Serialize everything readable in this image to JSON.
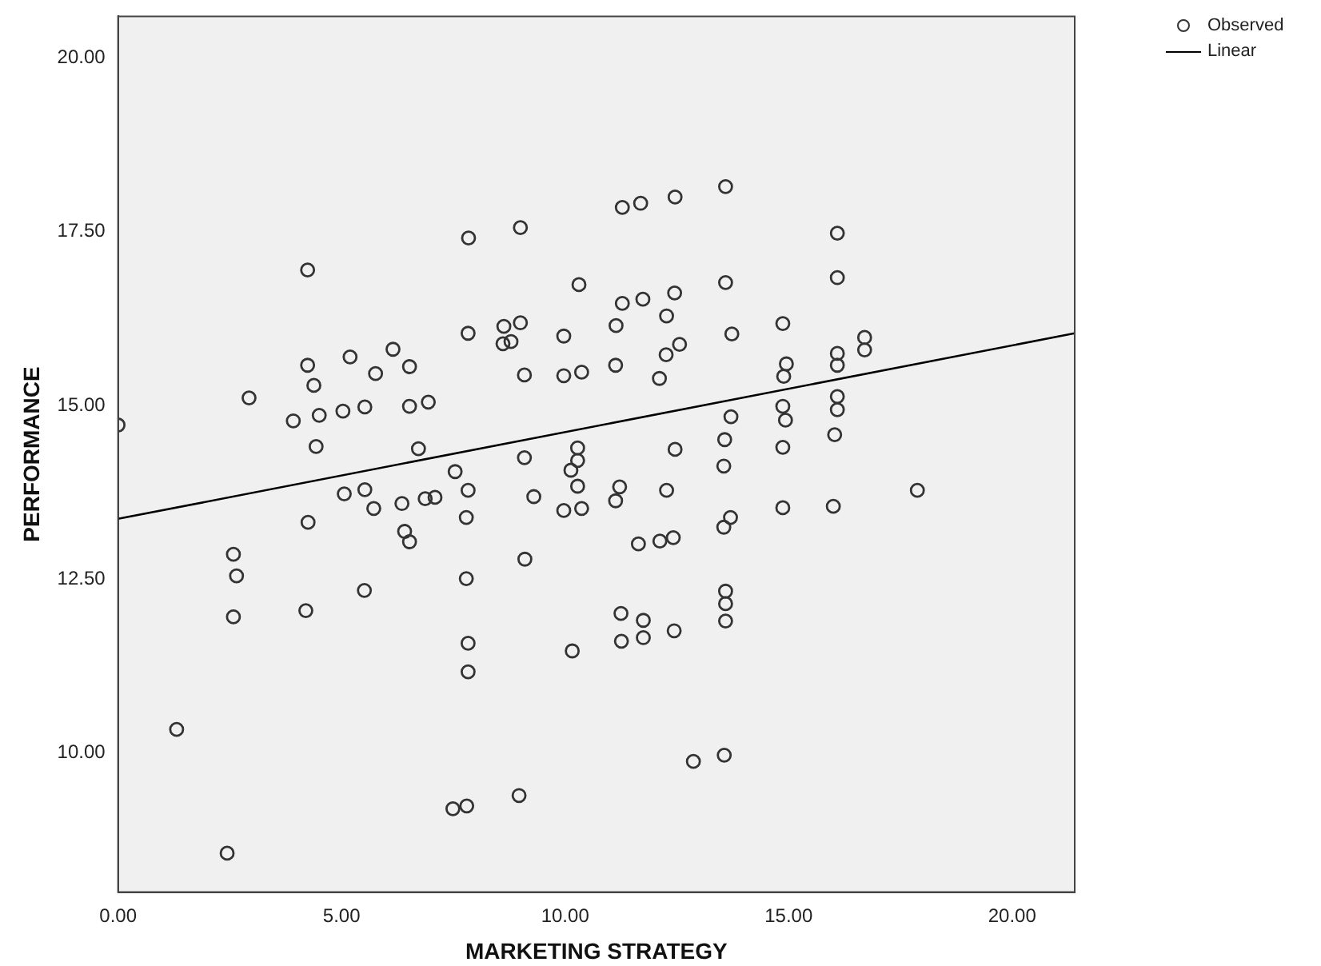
{
  "chart_data": {
    "type": "scatter",
    "xlabel": "MARKETING STRATEGY",
    "ylabel": "PERFORMANCE",
    "xlim": [
      0,
      21.4
    ],
    "ylim": [
      8.0,
      20.6
    ],
    "xticks": [
      {
        "value": 0,
        "label": "0.00"
      },
      {
        "value": 5,
        "label": "5.00"
      },
      {
        "value": 10,
        "label": "10.00"
      },
      {
        "value": 15,
        "label": "15.00"
      },
      {
        "value": 20,
        "label": "20.00"
      }
    ],
    "yticks": [
      {
        "value": 10,
        "label": "10.00"
      },
      {
        "value": 12.5,
        "label": "12.50"
      },
      {
        "value": 15,
        "label": "15.00"
      },
      {
        "value": 17.5,
        "label": "17.50"
      },
      {
        "value": 20,
        "label": "20.00"
      }
    ],
    "grid": false,
    "legend": "top right",
    "marker": "circle",
    "series": [
      {
        "name": "Observed",
        "type": "scatter",
        "color": "#333333",
        "x": [
          0,
          1.31,
          2.44,
          2.58,
          2.65,
          2.58,
          2.93,
          4.24,
          4.24,
          4.38,
          3.92,
          4.5,
          4.43,
          4.25,
          4.2,
          5.19,
          5.03,
          5.06,
          5.52,
          5.72,
          5.51,
          6.15,
          5.76,
          5.52,
          6.52,
          6.52,
          6.94,
          6.72,
          6.35,
          6.87,
          7.09,
          6.41,
          6.52,
          7.54,
          7.84,
          7.83,
          7.83,
          7.79,
          7.79,
          7.83,
          7.83,
          7.49,
          7.8,
          8.63,
          9,
          8.61,
          8.79,
          9,
          9.09,
          9.09,
          9.3,
          9.1,
          8.97,
          9.97,
          9.97,
          10.37,
          10.31,
          10.28,
          10.28,
          10.13,
          10.28,
          9.97,
          10.37,
          10.16,
          11.28,
          11.69,
          12.46,
          13.59,
          16.09,
          16.09,
          11.28,
          11.74,
          12.45,
          13.59,
          12.27,
          11.14,
          13.73,
          14.87,
          16.7,
          16.7,
          12.26,
          12.56,
          11.13,
          12.11,
          14.95,
          14.89,
          16.09,
          16.09,
          16.09,
          16.09,
          14.87,
          14.93,
          13.71,
          13.57,
          16.03,
          14.87,
          12.46,
          13.55,
          12.27,
          11.22,
          11.13,
          17.88,
          14.87,
          16,
          13.7,
          11.64,
          12.12,
          12.42,
          13.55,
          11.25,
          11.75,
          11.26,
          11.75,
          12.44,
          13.59,
          13.59,
          13.59,
          12.87,
          13.56
        ],
        "values": [
          14.72,
          10.34,
          8.56,
          12.86,
          12.55,
          11.96,
          15.11,
          16.95,
          15.58,
          15.29,
          14.78,
          14.86,
          14.41,
          13.32,
          12.05,
          15.7,
          14.92,
          13.73,
          13.79,
          13.52,
          12.34,
          15.81,
          15.46,
          14.98,
          15.56,
          14.99,
          15.05,
          14.38,
          13.59,
          13.66,
          13.68,
          13.19,
          13.04,
          14.05,
          17.41,
          16.04,
          13.78,
          13.39,
          12.51,
          11.58,
          11.17,
          9.2,
          9.24,
          16.14,
          16.19,
          15.89,
          15.92,
          17.56,
          15.44,
          14.25,
          13.69,
          12.79,
          9.39,
          16,
          15.43,
          15.48,
          16.74,
          14.39,
          14.21,
          14.07,
          13.84,
          13.49,
          13.52,
          11.47,
          17.85,
          17.91,
          18,
          18.15,
          17.48,
          16.84,
          16.47,
          16.53,
          16.62,
          16.77,
          16.29,
          16.15,
          16.03,
          16.18,
          15.98,
          15.8,
          15.73,
          15.88,
          15.58,
          15.39,
          15.6,
          15.42,
          15.75,
          15.58,
          15.13,
          14.94,
          14.99,
          14.79,
          14.84,
          14.51,
          14.58,
          14.4,
          14.37,
          14.13,
          13.78,
          13.83,
          13.63,
          13.78,
          13.53,
          13.55,
          13.39,
          13.01,
          13.05,
          13.1,
          13.25,
          12.01,
          11.91,
          11.61,
          11.66,
          11.76,
          12.33,
          12.15,
          11.9,
          9.88,
          9.97
        ]
      },
      {
        "name": "Linear",
        "type": "line",
        "color": "#000000",
        "x": [
          0,
          21.4
        ],
        "values": [
          13.37,
          16.04
        ],
        "marker": "none",
        "line_style": "solid"
      }
    ]
  }
}
